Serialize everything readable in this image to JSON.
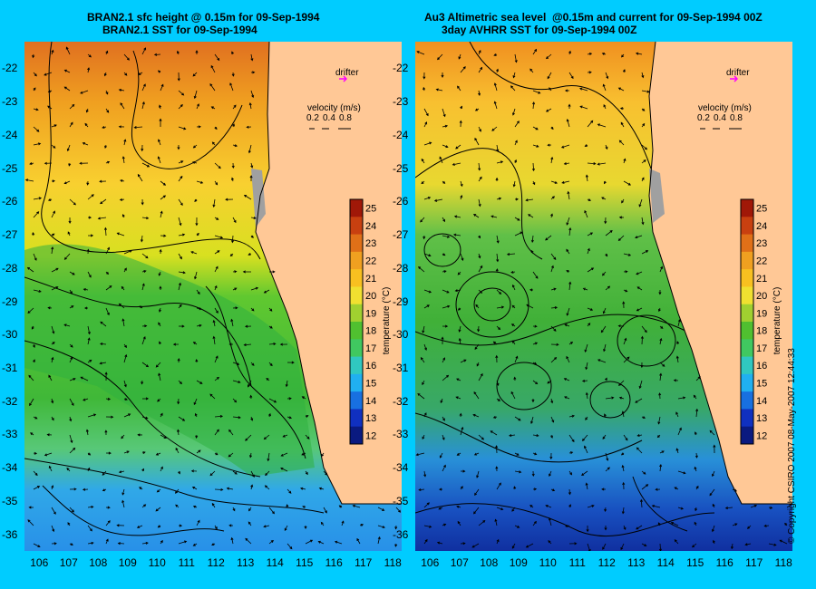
{
  "left": {
    "title_line1": "BRAN2.1 sfc height @ 0.15m for 09-Sep-1994",
    "title_line2": "BRAN2.1 SST for 09-Sep-1994"
  },
  "right": {
    "title_line1": "Au3 Altimetric sea level  @0.15m and current for 09-Sep-1994 00Z",
    "title_line2": "3day AVHRR SST for 09-Sep-1994 00Z"
  },
  "legend": {
    "drifter": "drifter",
    "velocity_label": "velocity (m/s)",
    "velocity_scale": [
      "0.2",
      "0.4",
      "0.8"
    ]
  },
  "colorbar": {
    "label": "temperature (°C)",
    "ticks": [
      "25",
      "24",
      "23",
      "22",
      "21",
      "20",
      "19",
      "18",
      "17",
      "16",
      "15",
      "14",
      "13",
      "12"
    ],
    "min": 11.5,
    "max": 25.5
  },
  "axes": {
    "lat_ticks": [
      "-22",
      "-23",
      "-24",
      "-25",
      "-26",
      "-27",
      "-28",
      "-29",
      "-30",
      "-31",
      "-32",
      "-33",
      "-34",
      "-35",
      "-36"
    ],
    "lon_ticks": [
      "106",
      "107",
      "108",
      "109",
      "110",
      "111",
      "112",
      "113",
      "114",
      "115",
      "116",
      "117",
      "118"
    ],
    "lat_range": [
      -36.5,
      -21.2
    ],
    "lon_range": [
      105.5,
      118.3
    ]
  },
  "copyright": "© Copyright CSIRO 2007   08-May-2007 12:44:33",
  "colors": {
    "background": "#00ccff",
    "land": "#ffc896",
    "drifter": "#ff00ff"
  }
}
